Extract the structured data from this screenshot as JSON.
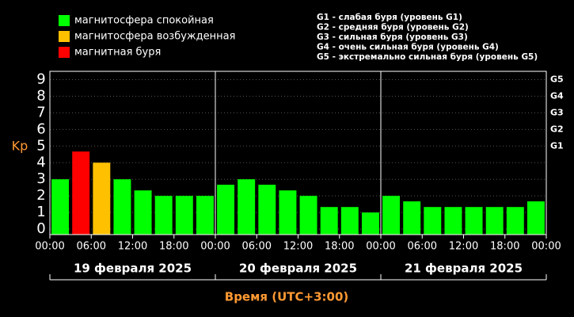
{
  "chart_data": {
    "type": "bar",
    "legend": [
      {
        "name": "магнитосфера спокойная",
        "color": "#00ff00"
      },
      {
        "name": "магнитосфера возбужденная",
        "color": "#ffc000"
      },
      {
        "name": "магнитная буря",
        "color": "#ff0000"
      }
    ],
    "storm_legend": [
      "G1 - слабая буря (уровень G1)",
      "G2 - средняя буря (уровень G2)",
      "G3 - сильная буря (уровень G3)",
      "G4 - очень сильная буря (уровень G4)",
      "G5 - экстремально сильная буря (уровень G5)"
    ],
    "y_label": "Kp",
    "x_label": "Время (UTC+3:00)",
    "x": [
      0,
      3,
      6,
      9,
      12,
      15,
      18,
      21,
      24,
      27,
      30,
      33,
      36,
      39,
      42,
      45,
      48,
      51,
      54,
      57,
      60,
      63,
      66,
      69
    ],
    "bar_width": 3,
    "values": [
      3,
      4.67,
      4,
      3,
      2.33,
      2,
      2,
      2,
      2.67,
      3,
      2.67,
      2.33,
      2,
      1.33,
      1.33,
      1,
      2,
      1.67,
      1.33,
      1.33,
      1.33,
      1.33,
      1.33,
      1.67
    ],
    "colors": [
      "#00ff00",
      "#ff0000",
      "#ffc000",
      "#00ff00",
      "#00ff00",
      "#00ff00",
      "#00ff00",
      "#00ff00",
      "#00ff00",
      "#00ff00",
      "#00ff00",
      "#00ff00",
      "#00ff00",
      "#00ff00",
      "#00ff00",
      "#00ff00",
      "#00ff00",
      "#00ff00",
      "#00ff00",
      "#00ff00",
      "#00ff00",
      "#00ff00",
      "#00ff00",
      "#00ff00"
    ],
    "xlim": [
      0,
      72
    ],
    "xticks": [
      {
        "value": 0,
        "label": "00:00"
      },
      {
        "value": 6,
        "label": "06:00"
      },
      {
        "value": 12,
        "label": "12:00"
      },
      {
        "value": 18,
        "label": "18:00"
      },
      {
        "value": 24,
        "label": "00:00"
      },
      {
        "value": 30,
        "label": "06:00"
      },
      {
        "value": 36,
        "label": "12:00"
      },
      {
        "value": 42,
        "label": "18:00"
      },
      {
        "value": 48,
        "label": "00:00"
      },
      {
        "value": 54,
        "label": "06:00"
      },
      {
        "value": 60,
        "label": "12:00"
      },
      {
        "value": 66,
        "label": "18:00"
      },
      {
        "value": 72,
        "label": "00:00"
      }
    ],
    "days": [
      {
        "value": 0,
        "label": "19 февраля 2025"
      },
      {
        "value": 24,
        "label": "20 февраля 2025"
      },
      {
        "value": 48,
        "label": "21 февраля 2025"
      }
    ],
    "day_length": 24,
    "ylim": [
      -0.33,
      9.5
    ],
    "yticks": [
      0,
      1,
      2,
      3,
      4,
      5,
      6,
      7,
      8,
      9
    ],
    "y2ticks": [
      {
        "value": 5,
        "label": "G1"
      },
      {
        "value": 6,
        "label": "G2"
      },
      {
        "value": 7,
        "label": "G3"
      },
      {
        "value": 8,
        "label": "G4"
      },
      {
        "value": 9,
        "label": "G5"
      }
    ],
    "grid": true
  }
}
